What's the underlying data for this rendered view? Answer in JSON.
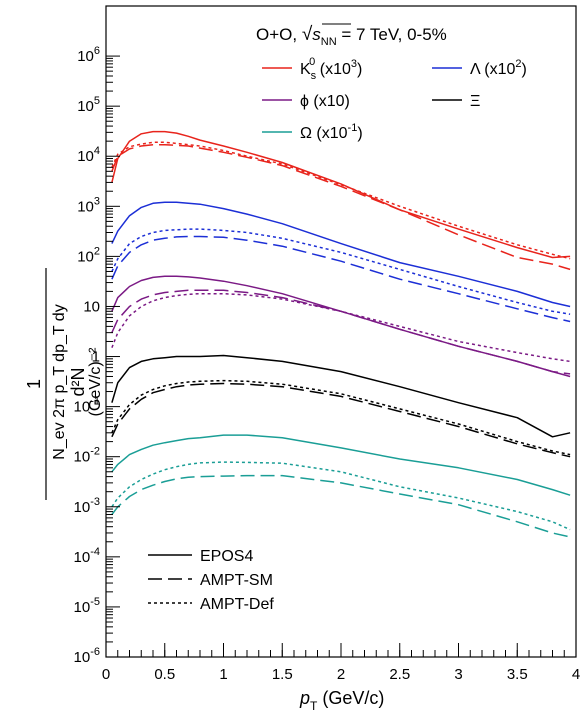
{
  "chart_data": {
    "type": "line",
    "title": "O+O, √s_NN = 7 TeV, 0-5%",
    "title_parts": {
      "system": "O+O, ",
      "sqrt": "√",
      "s": "s",
      "nn": "NN",
      "rest": " = 7 TeV, 0-5%"
    },
    "xlabel": {
      "main": "p",
      "sub": "T",
      "unit": " (GeV/c)"
    },
    "ylabel": {
      "one": "1",
      "num": "d²N",
      "den": "N_ev 2π p_T dp_T dy",
      "unit": "(GeV/c)⁻²"
    },
    "xlim": [
      0,
      4
    ],
    "ylim": [
      1e-06,
      10000000.0
    ],
    "log_y": true,
    "x_tick_values": [
      0,
      0.5,
      1,
      1.5,
      2,
      2.5,
      3,
      3.5,
      4
    ],
    "x_tick_labels": [
      "0",
      "0.5",
      "1",
      "1.5",
      "2",
      "2.5",
      "3",
      "3.5",
      "4"
    ],
    "y_tick_values": [
      1e-06,
      1e-05,
      0.0001,
      0.001,
      0.01,
      0.1,
      1,
      10,
      100,
      1000,
      10000,
      100000,
      1000000
    ],
    "y_tick_labels": [
      {
        "base": "10",
        "exp": "-6"
      },
      {
        "base": "10",
        "exp": "-5"
      },
      {
        "base": "10",
        "exp": "-4"
      },
      {
        "base": "10",
        "exp": "-3"
      },
      {
        "base": "10",
        "exp": "-2"
      },
      {
        "base": "10",
        "exp": "-1"
      },
      {
        "base": "1",
        "exp": ""
      },
      {
        "base": "10",
        "exp": ""
      },
      {
        "base": "10",
        "exp": "2"
      },
      {
        "base": "10",
        "exp": "3"
      },
      {
        "base": "10",
        "exp": "4"
      },
      {
        "base": "10",
        "exp": "5"
      },
      {
        "base": "10",
        "exp": "6"
      }
    ],
    "species_legend": [
      {
        "label": "K",
        "sub": "s",
        "sup": "0",
        "suffix": " (x10",
        "suffix_sup": "3",
        "end": ")",
        "color": "#e8241c"
      },
      {
        "label": "Λ",
        "sub": "",
        "sup": "",
        "suffix": " (x10",
        "suffix_sup": "2",
        "end": ")",
        "color": "#1c2fd6"
      },
      {
        "label": "ϕ",
        "sub": "",
        "sup": "",
        "suffix": " (x10)",
        "suffix_sup": "",
        "end": "",
        "color": "#7b1a85"
      },
      {
        "label": "Ξ",
        "sub": "",
        "sup": "",
        "suffix": "",
        "suffix_sup": "",
        "end": "",
        "color": "#000000"
      },
      {
        "label": "Ω",
        "sub": "",
        "sup": "",
        "suffix": " (x10",
        "suffix_sup": "-1",
        "end": ")",
        "color": "#1a9e96"
      }
    ],
    "model_legend": [
      {
        "label": "EPOS4",
        "dash": "solid"
      },
      {
        "label": "AMPT-SM",
        "dash": "dashed"
      },
      {
        "label": "AMPT-Def",
        "dash": "dotted"
      }
    ],
    "x": [
      0.05,
      0.1,
      0.2,
      0.3,
      0.4,
      0.5,
      0.6,
      0.7,
      0.8,
      1.0,
      1.2,
      1.5,
      2.0,
      2.5,
      3.0,
      3.5,
      3.8,
      3.95
    ],
    "series": [
      {
        "species": "K0s",
        "model": "EPOS4",
        "color": "#e8241c",
        "dash": "solid",
        "values": [
          3000,
          9000,
          20000,
          28000,
          31000,
          31000,
          29000,
          25000,
          21000,
          16000,
          12000,
          7500,
          2800,
          850,
          350,
          150,
          95,
          100
        ]
      },
      {
        "species": "K0s",
        "model": "AMPT-SM",
        "color": "#e8241c",
        "dash": "dashed",
        "values": [
          5000,
          10000,
          14000,
          16000,
          17000,
          17000,
          16500,
          16000,
          14500,
          12000,
          9500,
          6500,
          2500,
          850,
          270,
          95,
          70,
          55
        ]
      },
      {
        "species": "K0s",
        "model": "AMPT-Def",
        "color": "#e8241c",
        "dash": "dotted",
        "values": [
          6000,
          11000,
          15500,
          17500,
          19000,
          19000,
          18000,
          17000,
          16000,
          13000,
          10000,
          7000,
          2700,
          1000,
          400,
          170,
          110,
          90
        ]
      },
      {
        "species": "Lambda",
        "model": "EPOS4",
        "color": "#1c2fd6",
        "dash": "solid",
        "values": [
          180,
          320,
          650,
          950,
          1150,
          1200,
          1200,
          1150,
          1100,
          900,
          700,
          450,
          180,
          75,
          40,
          20,
          12,
          10
        ]
      },
      {
        "species": "Lambda",
        "model": "AMPT-SM",
        "color": "#1c2fd6",
        "dash": "dashed",
        "values": [
          35,
          65,
          120,
          170,
          210,
          230,
          245,
          250,
          250,
          240,
          210,
          160,
          80,
          35,
          18,
          9,
          6,
          5
        ]
      },
      {
        "species": "Lambda",
        "model": "AMPT-Def",
        "color": "#1c2fd6",
        "dash": "dotted",
        "values": [
          50,
          90,
          180,
          250,
          300,
          330,
          340,
          350,
          350,
          330,
          300,
          230,
          120,
          55,
          25,
          12,
          8,
          7
        ]
      },
      {
        "species": "phi",
        "model": "EPOS4",
        "color": "#7b1a85",
        "dash": "solid",
        "values": [
          8,
          15,
          25,
          33,
          38,
          40,
          40,
          39,
          37,
          32,
          26,
          18,
          8,
          3.5,
          1.6,
          0.8,
          0.5,
          0.4
        ]
      },
      {
        "species": "phi",
        "model": "AMPT-SM",
        "color": "#7b1a85",
        "dash": "dashed",
        "values": [
          3,
          5.5,
          10,
          14,
          17,
          19,
          20,
          21,
          21,
          21,
          19,
          15,
          8,
          3.5,
          1.6,
          0.8,
          0.5,
          0.45
        ]
      },
      {
        "species": "phi",
        "model": "AMPT-Def",
        "color": "#7b1a85",
        "dash": "dotted",
        "values": [
          1.5,
          3,
          6.5,
          10,
          13,
          15,
          16.5,
          17.5,
          18,
          18,
          17,
          14,
          8,
          4,
          2,
          1.2,
          0.9,
          0.8
        ]
      },
      {
        "species": "Xi",
        "model": "EPOS4",
        "color": "#000000",
        "dash": "solid",
        "values": [
          0.12,
          0.3,
          0.6,
          0.8,
          0.9,
          0.95,
          1.0,
          1.0,
          1.0,
          1.05,
          0.95,
          0.8,
          0.5,
          0.25,
          0.12,
          0.06,
          0.025,
          0.03
        ]
      },
      {
        "species": "Xi",
        "model": "AMPT-SM",
        "color": "#000000",
        "dash": "dashed",
        "values": [
          0.025,
          0.045,
          0.09,
          0.14,
          0.19,
          0.22,
          0.25,
          0.27,
          0.28,
          0.29,
          0.28,
          0.25,
          0.16,
          0.08,
          0.04,
          0.018,
          0.012,
          0.01
        ]
      },
      {
        "species": "Xi",
        "model": "AMPT-Def",
        "color": "#000000",
        "dash": "dotted",
        "values": [
          0.03,
          0.055,
          0.11,
          0.17,
          0.22,
          0.26,
          0.29,
          0.31,
          0.32,
          0.33,
          0.32,
          0.28,
          0.18,
          0.09,
          0.045,
          0.02,
          0.013,
          0.011
        ]
      },
      {
        "species": "Omega",
        "model": "EPOS4",
        "color": "#1a9e96",
        "dash": "solid",
        "values": [
          0.005,
          0.007,
          0.011,
          0.014,
          0.017,
          0.019,
          0.021,
          0.023,
          0.024,
          0.027,
          0.027,
          0.024,
          0.015,
          0.009,
          0.006,
          0.0035,
          0.0022,
          0.0017
        ]
      },
      {
        "species": "Omega",
        "model": "AMPT-SM",
        "color": "#1a9e96",
        "dash": "dashed",
        "values": [
          0.0007,
          0.001,
          0.0016,
          0.0022,
          0.0027,
          0.0032,
          0.0036,
          0.0039,
          0.004,
          0.0041,
          0.0042,
          0.0042,
          0.003,
          0.0018,
          0.0011,
          0.0005,
          0.0003,
          0.00025
        ]
      },
      {
        "species": "Omega",
        "model": "AMPT-Def",
        "color": "#1a9e96",
        "dash": "dotted",
        "values": [
          0.001,
          0.0015,
          0.0025,
          0.0035,
          0.0045,
          0.0055,
          0.0063,
          0.007,
          0.0075,
          0.0078,
          0.0077,
          0.0074,
          0.005,
          0.0025,
          0.0015,
          0.0008,
          0.0005,
          0.00035
        ]
      }
    ]
  }
}
